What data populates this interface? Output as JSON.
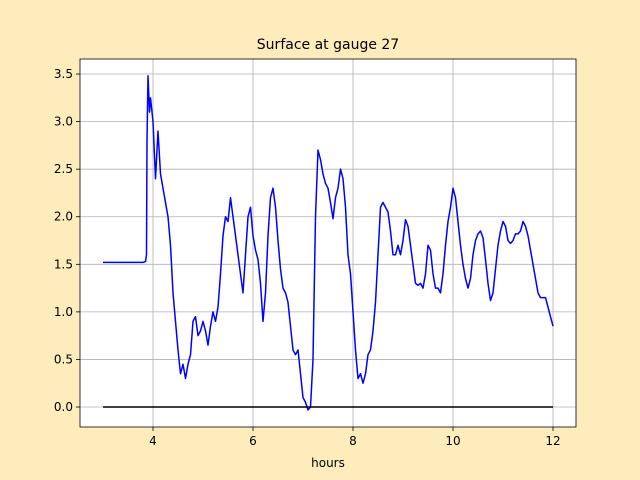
{
  "chart_data": {
    "type": "line",
    "title": "Surface at gauge 27",
    "xlabel": "hours",
    "xlim": [
      2.54,
      12.46
    ],
    "ylim": [
      -0.21,
      3.658
    ],
    "xticks": [
      4,
      6,
      8,
      10,
      12
    ],
    "yticks": [
      {
        "value": 0,
        "label": "0.0"
      },
      {
        "value": 0.5,
        "label": "0.5"
      },
      {
        "value": 1,
        "label": "1.0"
      },
      {
        "value": 1.5,
        "label": "1.5"
      },
      {
        "value": 2,
        "label": "2.0"
      },
      {
        "value": 2.5,
        "label": "2.5"
      },
      {
        "value": 3,
        "label": "3.0"
      },
      {
        "value": 3.5,
        "label": "3.5"
      }
    ],
    "grid": true,
    "series": [
      {
        "color": "#0000ff",
        "x": [
          3.0,
          3.2,
          3.4,
          3.6,
          3.8,
          3.85,
          3.87,
          3.88,
          3.9,
          3.93,
          3.95,
          4.0,
          4.05,
          4.1,
          4.15,
          4.2,
          4.25,
          4.3,
          4.35,
          4.4,
          4.45,
          4.5,
          4.55,
          4.6,
          4.65,
          4.7,
          4.75,
          4.8,
          4.85,
          4.9,
          4.95,
          5.0,
          5.05,
          5.1,
          5.15,
          5.2,
          5.25,
          5.3,
          5.35,
          5.4,
          5.45,
          5.5,
          5.55,
          5.6,
          5.65,
          5.7,
          5.75,
          5.8,
          5.85,
          5.9,
          5.95,
          6.0,
          6.05,
          6.1,
          6.15,
          6.2,
          6.25,
          6.3,
          6.35,
          6.4,
          6.45,
          6.5,
          6.55,
          6.6,
          6.65,
          6.7,
          6.75,
          6.8,
          6.85,
          6.9,
          6.95,
          7.0,
          7.05,
          7.1,
          7.15,
          7.2,
          7.25,
          7.3,
          7.35,
          7.4,
          7.45,
          7.5,
          7.55,
          7.6,
          7.65,
          7.7,
          7.75,
          7.8,
          7.85,
          7.9,
          7.95,
          8.0,
          8.05,
          8.1,
          8.15,
          8.2,
          8.25,
          8.3,
          8.35,
          8.4,
          8.45,
          8.5,
          8.55,
          8.6,
          8.65,
          8.7,
          8.75,
          8.8,
          8.85,
          8.9,
          8.95,
          9.0,
          9.05,
          9.1,
          9.15,
          9.2,
          9.25,
          9.3,
          9.35,
          9.4,
          9.45,
          9.5,
          9.55,
          9.6,
          9.65,
          9.7,
          9.75,
          9.8,
          9.85,
          9.9,
          9.95,
          10.0,
          10.05,
          10.1,
          10.15,
          10.2,
          10.25,
          10.3,
          10.35,
          10.4,
          10.45,
          10.5,
          10.55,
          10.6,
          10.65,
          10.7,
          10.75,
          10.8,
          10.85,
          10.9,
          10.95,
          11.0,
          11.05,
          11.1,
          11.15,
          11.2,
          11.25,
          11.3,
          11.35,
          11.4,
          11.45,
          11.5,
          11.55,
          11.6,
          11.65,
          11.7,
          11.75,
          11.8,
          11.85,
          11.9,
          11.95,
          12.0
        ],
        "values": [
          1.52,
          1.52,
          1.52,
          1.52,
          1.52,
          1.53,
          1.6,
          2.8,
          3.48,
          3.1,
          3.25,
          3.0,
          2.4,
          2.9,
          2.45,
          2.3,
          2.15,
          2.0,
          1.7,
          1.2,
          0.9,
          0.6,
          0.35,
          0.45,
          0.3,
          0.45,
          0.55,
          0.9,
          0.95,
          0.75,
          0.8,
          0.9,
          0.8,
          0.65,
          0.85,
          1.0,
          0.9,
          1.05,
          1.4,
          1.8,
          2.0,
          1.95,
          2.2,
          2.0,
          1.8,
          1.6,
          1.4,
          1.2,
          1.6,
          2.0,
          2.1,
          1.8,
          1.65,
          1.55,
          1.3,
          0.9,
          1.2,
          1.8,
          2.2,
          2.3,
          2.1,
          1.75,
          1.45,
          1.25,
          1.2,
          1.1,
          0.85,
          0.6,
          0.55,
          0.6,
          0.35,
          0.1,
          0.05,
          -0.03,
          0.0,
          0.5,
          2.0,
          2.7,
          2.6,
          2.45,
          2.35,
          2.3,
          2.15,
          1.98,
          2.2,
          2.3,
          2.5,
          2.4,
          2.1,
          1.6,
          1.4,
          1.0,
          0.6,
          0.3,
          0.35,
          0.25,
          0.35,
          0.55,
          0.6,
          0.8,
          1.1,
          1.6,
          2.1,
          2.15,
          2.1,
          2.05,
          1.85,
          1.6,
          1.6,
          1.7,
          1.6,
          1.75,
          1.97,
          1.9,
          1.7,
          1.5,
          1.3,
          1.28,
          1.3,
          1.25,
          1.4,
          1.7,
          1.65,
          1.4,
          1.25,
          1.25,
          1.2,
          1.4,
          1.7,
          1.95,
          2.1,
          2.3,
          2.2,
          1.95,
          1.7,
          1.5,
          1.35,
          1.25,
          1.35,
          1.6,
          1.75,
          1.82,
          1.85,
          1.78,
          1.55,
          1.3,
          1.12,
          1.2,
          1.45,
          1.7,
          1.85,
          1.95,
          1.9,
          1.75,
          1.72,
          1.75,
          1.82,
          1.82,
          1.85,
          1.95,
          1.9,
          1.8,
          1.65,
          1.5,
          1.35,
          1.2,
          1.15,
          1.15,
          1.15,
          1.05,
          0.95,
          0.85
        ]
      },
      {
        "color": "#000000",
        "x": [
          3,
          12
        ],
        "values": [
          0,
          0
        ]
      }
    ]
  }
}
